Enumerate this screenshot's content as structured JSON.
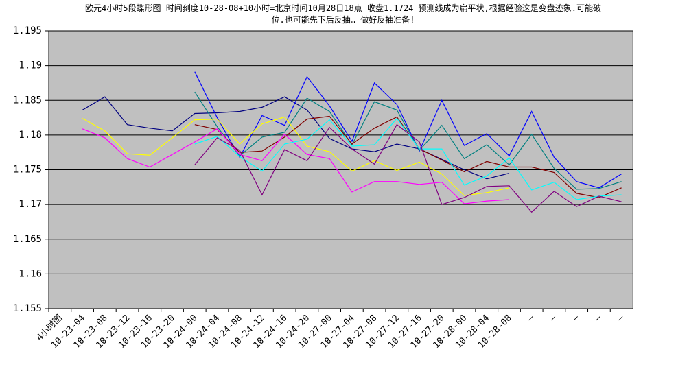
{
  "chart_data": {
    "type": "line",
    "title": [
      "欧元4小时5段蝶形图 时间刻度10-28-08+10小时=北京时间10月28日18点 收盘1.1724 预测线成为扁平状,根据经验这是变盘迹象.可能破",
      "位.也可能先下后反抽… 做好反抽准备!"
    ],
    "categories": [
      "4小时图",
      "10-23-04",
      "10-23-08",
      "10-23-12",
      "10-23-16",
      "10-23-20",
      "10-24-00",
      "10-24-04",
      "10-24-08",
      "10-24-12",
      "10-24-16",
      "10-24-20",
      "10-27-00",
      "10-27-04",
      "10-27-08",
      "10-27-12",
      "10-27-16",
      "10-27-20",
      "10-28-00",
      "10-28-04",
      "10-28-08",
      "—",
      "—",
      "—",
      "—",
      "—"
    ],
    "series": [
      {
        "color": "#000080",
        "values": [
          null,
          1.1836,
          1.1855,
          1.1815,
          1.181,
          1.1806,
          1.1831,
          1.1832,
          1.1834,
          1.184,
          1.1855,
          1.1836,
          1.1795,
          1.178,
          1.1776,
          1.1787,
          1.178,
          1.1765,
          1.175,
          1.1737,
          1.1745,
          null,
          null,
          null,
          null,
          null
        ]
      },
      {
        "color": "#0000ff",
        "values": [
          null,
          null,
          null,
          null,
          null,
          null,
          1.1891,
          1.1825,
          1.1768,
          1.1828,
          1.1814,
          1.1884,
          1.1842,
          1.1791,
          1.1875,
          1.1844,
          1.1777,
          1.185,
          1.1785,
          1.1802,
          1.177,
          1.1834,
          1.1768,
          1.1733,
          1.1724,
          1.1744
        ]
      },
      {
        "color": "#008080",
        "values": [
          null,
          null,
          null,
          null,
          null,
          null,
          1.1862,
          1.1812,
          1.177,
          1.1797,
          1.1804,
          1.1853,
          1.1834,
          1.1786,
          1.1848,
          1.1836,
          1.1778,
          1.1814,
          1.1766,
          1.1786,
          1.1757,
          1.1801,
          1.1752,
          1.1722,
          1.1723,
          1.1733
        ]
      },
      {
        "color": "#800000",
        "values": [
          null,
          null,
          null,
          null,
          null,
          null,
          1.1815,
          1.1808,
          1.1775,
          1.1777,
          1.1797,
          1.1823,
          1.1827,
          1.1787,
          1.181,
          1.1826,
          1.178,
          1.1764,
          1.1747,
          1.1762,
          1.1754,
          1.1754,
          1.1746,
          1.1716,
          1.171,
          1.1724
        ]
      },
      {
        "color": "#ff00ff",
        "values": [
          null,
          1.1809,
          1.1796,
          1.1766,
          1.1754,
          1.1772,
          1.179,
          1.1809,
          1.1772,
          1.1763,
          1.1801,
          1.1772,
          1.1766,
          1.1718,
          1.1733,
          1.1733,
          1.1729,
          1.1732,
          1.1701,
          1.1705,
          1.1707,
          null,
          null,
          null,
          null,
          null
        ]
      },
      {
        "color": "#ffff00",
        "values": [
          null,
          1.1824,
          1.1806,
          1.1773,
          1.1771,
          1.1796,
          1.1822,
          1.1823,
          1.1787,
          1.1816,
          1.1826,
          1.1784,
          1.1776,
          1.1748,
          1.1763,
          1.1749,
          1.1761,
          1.1744,
          1.1713,
          1.1717,
          1.1724,
          null,
          null,
          null,
          null,
          null
        ]
      },
      {
        "color": "#00ffff",
        "values": [
          null,
          null,
          null,
          null,
          null,
          null,
          1.1787,
          1.1798,
          1.1769,
          1.1748,
          1.1787,
          1.1794,
          1.1822,
          1.1784,
          1.1786,
          1.1824,
          1.178,
          1.178,
          1.1728,
          1.1741,
          1.1767,
          1.1721,
          1.1732,
          1.1707,
          1.1712,
          1.1714
        ]
      },
      {
        "color": "#800080",
        "values": [
          null,
          null,
          null,
          null,
          null,
          null,
          1.1757,
          1.1796,
          1.1778,
          1.1714,
          1.1779,
          1.1763,
          1.1811,
          1.178,
          1.1758,
          1.1815,
          1.179,
          1.17,
          1.171,
          1.1726,
          1.1727,
          1.1689,
          1.1719,
          1.1697,
          1.1712,
          1.1704
        ]
      }
    ],
    "ylim": [
      1.155,
      1.195
    ],
    "yticks": [
      1.155,
      1.16,
      1.165,
      1.17,
      1.175,
      1.18,
      1.185,
      1.19,
      1.195
    ],
    "grid": true,
    "background": "#c0c0c0"
  }
}
